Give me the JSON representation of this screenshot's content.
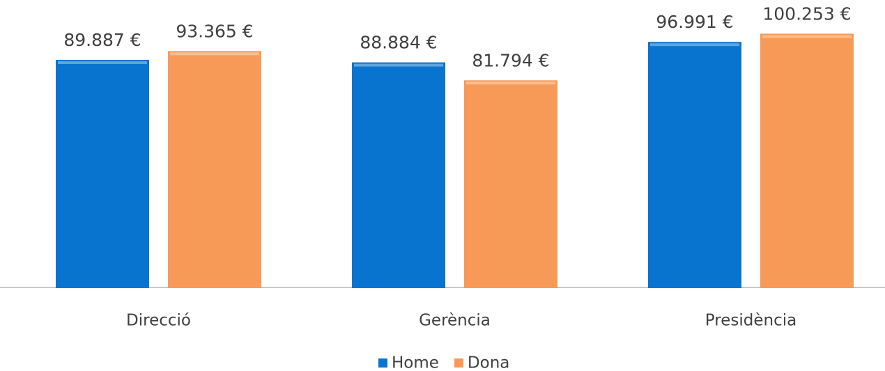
{
  "chart_data": {
    "type": "bar",
    "categories": [
      "Direcció",
      "Gerència",
      "Presidència"
    ],
    "series": [
      {
        "name": "Home",
        "color": "#0874cf",
        "values": [
          89887,
          88884,
          96991
        ],
        "value_labels": [
          "89.887 €",
          "88.884 €",
          "96.991 €"
        ]
      },
      {
        "name": "Dona",
        "color": "#f79a58",
        "values": [
          93365,
          81794,
          100253
        ],
        "value_labels": [
          "93.365 €",
          "81.794 €",
          "100.253 €"
        ]
      }
    ]
  }
}
